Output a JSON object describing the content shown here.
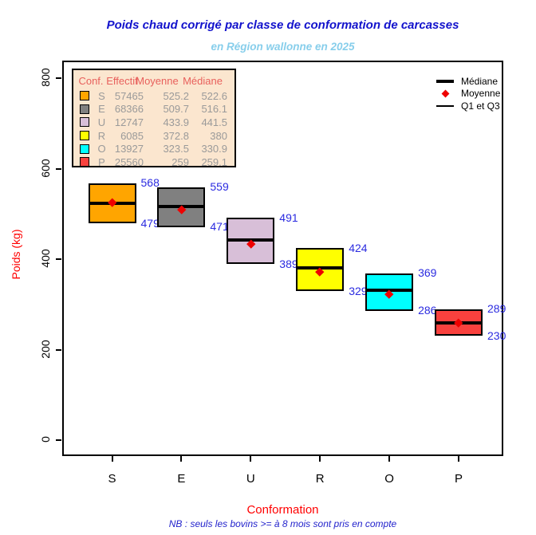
{
  "chart_data": {
    "type": "boxplot",
    "title": "Poids chaud corrigé par classe de conformation de carcasses",
    "subtitle": "en Région wallonne en 2025",
    "xlabel": "Conformation",
    "ylabel": "Poids (kg)",
    "note": "NB : seuls les bovins >= à 8 mois sont pris en compte",
    "ylim": [
      0,
      800
    ],
    "y_ticks": [
      0,
      200,
      400,
      600,
      800
    ],
    "grid": false,
    "categories": [
      "S",
      "E",
      "U",
      "R",
      "O",
      "P"
    ],
    "series": [
      {
        "conf": "S",
        "color": "#FFA500",
        "effectif": "57465",
        "moyenne": "525.2",
        "mediane": "522.6",
        "q1": 479,
        "q3": 568
      },
      {
        "conf": "E",
        "color": "#808080",
        "effectif": "68366",
        "moyenne": "509.7",
        "mediane": "516.1",
        "q1": 471,
        "q3": 559
      },
      {
        "conf": "U",
        "color": "#D8BFD8",
        "effectif": "12747",
        "moyenne": "433.9",
        "mediane": "441.5",
        "q1": 389,
        "q3": 491
      },
      {
        "conf": "R",
        "color": "#FFFF00",
        "effectif": "6085",
        "moyenne": "372.8",
        "mediane": "380",
        "q1": 329,
        "q3": 424
      },
      {
        "conf": "O",
        "color": "#00FFFF",
        "effectif": "13927",
        "moyenne": "323.5",
        "mediane": "330.9",
        "q1": 286,
        "q3": 369
      },
      {
        "conf": "P",
        "color": "#F9413E",
        "effectif": "25560",
        "moyenne": "259",
        "mediane": "259.1",
        "q1": 230,
        "q3": 289
      }
    ],
    "stats_table_headers": [
      "Conf.",
      "Effectif",
      "Moyenne",
      "Médiane"
    ],
    "legend": [
      {
        "label": "Médiane",
        "symbol": "thick-line"
      },
      {
        "label": "Moyenne",
        "symbol": "red-diamond"
      },
      {
        "label": "Q1 et Q3",
        "symbol": "thin-line"
      }
    ],
    "legend_position": "top-right"
  },
  "colors": {
    "title_blue": "#1212CC",
    "subtitle_blue": "#87CEEB",
    "axis_title_red": "#FF0000",
    "annotation_blue": "#2B2BE0",
    "note_blue": "#2222CC",
    "mean_marker_red": "#EE0000",
    "median_line": "#000000",
    "table_bg": "#FBE6CF",
    "table_header_red": "#E8605C",
    "table_text_gray": "#9A9A9A",
    "axis_text": "#000000"
  }
}
